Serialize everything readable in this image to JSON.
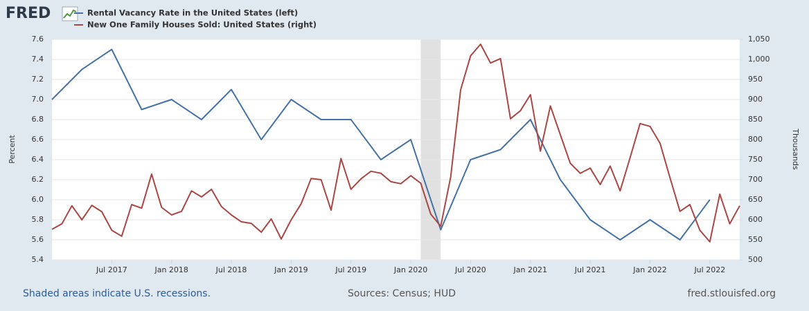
{
  "logo": "FRED",
  "footer": {
    "note": "Shaded areas indicate U.S. recessions.",
    "sources": "Sources: Census; HUD",
    "site": "fred.stlouisfed.org"
  },
  "chart_data": {
    "type": "line",
    "xlim": [
      "2017-01",
      "2022-10"
    ],
    "xticks": [
      {
        "value": "2017-07",
        "label": "Jul 2017"
      },
      {
        "value": "2018-01",
        "label": "Jan 2018"
      },
      {
        "value": "2018-07",
        "label": "Jul 2018"
      },
      {
        "value": "2019-01",
        "label": "Jan 2019"
      },
      {
        "value": "2019-07",
        "label": "Jul 2019"
      },
      {
        "value": "2020-01",
        "label": "Jan 2020"
      },
      {
        "value": "2020-07",
        "label": "Jul 2020"
      },
      {
        "value": "2021-01",
        "label": "Jan 2021"
      },
      {
        "value": "2021-07",
        "label": "Jul 2021"
      },
      {
        "value": "2022-01",
        "label": "Jan 2022"
      },
      {
        "value": "2022-07",
        "label": "Jul 2022"
      }
    ],
    "ylabel": "Percent",
    "ylim": [
      5.4,
      7.6
    ],
    "yticks": [
      5.4,
      5.6,
      5.8,
      {
        "value": 6,
        "label": "6.0"
      },
      6.2,
      6.4,
      6.6,
      6.8,
      {
        "value": 7,
        "label": "7.0"
      },
      7.2,
      7.4,
      7.6
    ],
    "y2label": "Thousands",
    "y2lim": [
      500,
      1050
    ],
    "y2ticks": [
      500,
      550,
      600,
      650,
      700,
      750,
      800,
      850,
      900,
      950,
      {
        "value": 1000,
        "label": "1,000"
      },
      {
        "value": 1050,
        "label": "1,050"
      }
    ],
    "grid": true,
    "recessions": [
      {
        "start": "2020-02",
        "end": "2020-04"
      }
    ],
    "series": [
      {
        "name": "Rental Vacancy Rate in the United States (left)",
        "color": "#4572a7",
        "axis": "y",
        "x": [
          "2017-01",
          "2017-04",
          "2017-07",
          "2017-10",
          "2018-01",
          "2018-04",
          "2018-07",
          "2018-10",
          "2019-01",
          "2019-04",
          "2019-07",
          "2019-10",
          "2020-01",
          "2020-04",
          "2020-07",
          "2020-10",
          "2021-01",
          "2021-04",
          "2021-07",
          "2021-10",
          "2022-01",
          "2022-04",
          "2022-07"
        ],
        "values": [
          7.0,
          7.3,
          7.5,
          6.9,
          7.0,
          6.8,
          7.1,
          6.6,
          7.0,
          6.8,
          6.8,
          6.4,
          6.6,
          5.7,
          6.4,
          6.5,
          6.8,
          6.2,
          5.8,
          5.6,
          5.8,
          5.6,
          6.0
        ]
      },
      {
        "name": "New One Family Houses Sold: United States (right)",
        "color": "#aa4643",
        "axis": "y2",
        "x": [
          "2017-01",
          "2017-02",
          "2017-03",
          "2017-04",
          "2017-05",
          "2017-06",
          "2017-07",
          "2017-08",
          "2017-09",
          "2017-10",
          "2017-11",
          "2017-12",
          "2018-01",
          "2018-02",
          "2018-03",
          "2018-04",
          "2018-05",
          "2018-06",
          "2018-07",
          "2018-08",
          "2018-09",
          "2018-10",
          "2018-11",
          "2018-12",
          "2019-01",
          "2019-02",
          "2019-03",
          "2019-04",
          "2019-05",
          "2019-06",
          "2019-07",
          "2019-08",
          "2019-09",
          "2019-10",
          "2019-11",
          "2019-12",
          "2020-01",
          "2020-02",
          "2020-03",
          "2020-04",
          "2020-05",
          "2020-06",
          "2020-07",
          "2020-08",
          "2020-09",
          "2020-10",
          "2020-11",
          "2020-12",
          "2021-01",
          "2021-02",
          "2021-03",
          "2021-04",
          "2021-05",
          "2021-06",
          "2021-07",
          "2021-08",
          "2021-09",
          "2021-10",
          "2021-11",
          "2021-12",
          "2022-01",
          "2022-02",
          "2022-03",
          "2022-04",
          "2022-05",
          "2022-06",
          "2022-07",
          "2022-08",
          "2022-09",
          "2022-10"
        ],
        "values": [
          576,
          590,
          635,
          600,
          636,
          620,
          574,
          559,
          638,
          629,
          714,
          631,
          612,
          621,
          672,
          657,
          676,
          633,
          612,
          595,
          591,
          569,
          602,
          552,
          600,
          640,
          703,
          700,
          624,
          753,
          676,
          702,
          721,
          716,
          695,
          690,
          710,
          691,
          614,
          584,
          707,
          924,
          1009,
          1038,
          991,
          1002,
          852,
          872,
          912,
          771,
          884,
          812,
          741,
          716,
          729,
          688,
          734,
          672,
          755,
          840,
          833,
          791,
          705,
          621,
          638,
          574,
          545,
          664,
          590,
          635
        ]
      }
    ]
  }
}
